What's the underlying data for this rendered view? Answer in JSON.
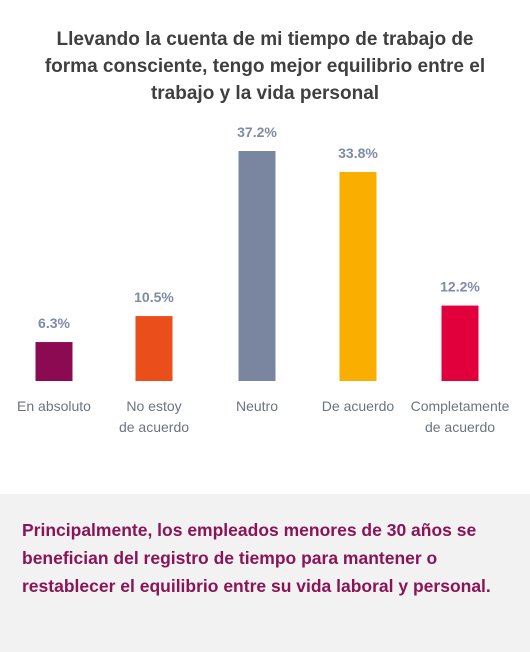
{
  "chart_data": {
    "type": "bar",
    "title": "Llevando la cuenta de mi tiempo de trabajo de forma consciente, tengo mejor equilibrio entre el trabajo y la vida personal",
    "categories": [
      [
        "En absoluto"
      ],
      [
        "No estoy",
        "de acuerdo"
      ],
      [
        "Neutro"
      ],
      [
        "De acuerdo"
      ],
      [
        "Completamente",
        "de acuerdo"
      ]
    ],
    "values": [
      6.3,
      10.5,
      37.2,
      33.8,
      12.2
    ],
    "value_labels": [
      "6.3%",
      "10.5%",
      "37.2%",
      "33.8%",
      "12.2%"
    ],
    "colors": [
      "#8b0a52",
      "#e94e1b",
      "#7a859f",
      "#f9ae00",
      "#e2003c"
    ],
    "value_label_color": "#7f8ba6",
    "ylim": [
      0,
      37.2
    ],
    "grid": false,
    "legend": "none"
  },
  "footer": {
    "text": "Principalmente, los empleados menores de 30 años se benefician del registro de tiempo para mantener o restablecer el equilibrio entre su vida laboral y personal."
  }
}
